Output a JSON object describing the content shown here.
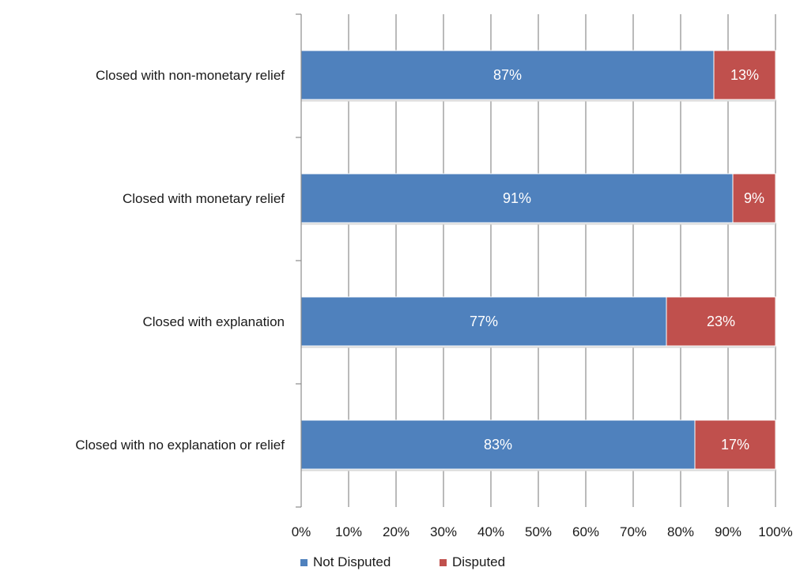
{
  "chart_data": {
    "type": "bar",
    "orientation": "horizontal",
    "stacked": true,
    "percent_stacked": true,
    "categories": [
      "Closed with non-monetary relief",
      "Closed with monetary relief",
      "Closed with explanation",
      "Closed with no explanation or relief"
    ],
    "series": [
      {
        "name": "Not Disputed",
        "color": "#4f81bd",
        "values": [
          87,
          91,
          77,
          83
        ],
        "labels": [
          "87%",
          "91%",
          "77%",
          "83%"
        ]
      },
      {
        "name": "Disputed",
        "color": "#c0504d",
        "values": [
          13,
          9,
          23,
          17
        ],
        "labels": [
          "13%",
          "9%",
          "23%",
          "17%"
        ]
      }
    ],
    "x_ticks": [
      "0%",
      "10%",
      "20%",
      "30%",
      "40%",
      "50%",
      "60%",
      "70%",
      "80%",
      "90%",
      "100%"
    ],
    "xlim": [
      0,
      100
    ],
    "grid": true,
    "legend_position": "bottom"
  }
}
